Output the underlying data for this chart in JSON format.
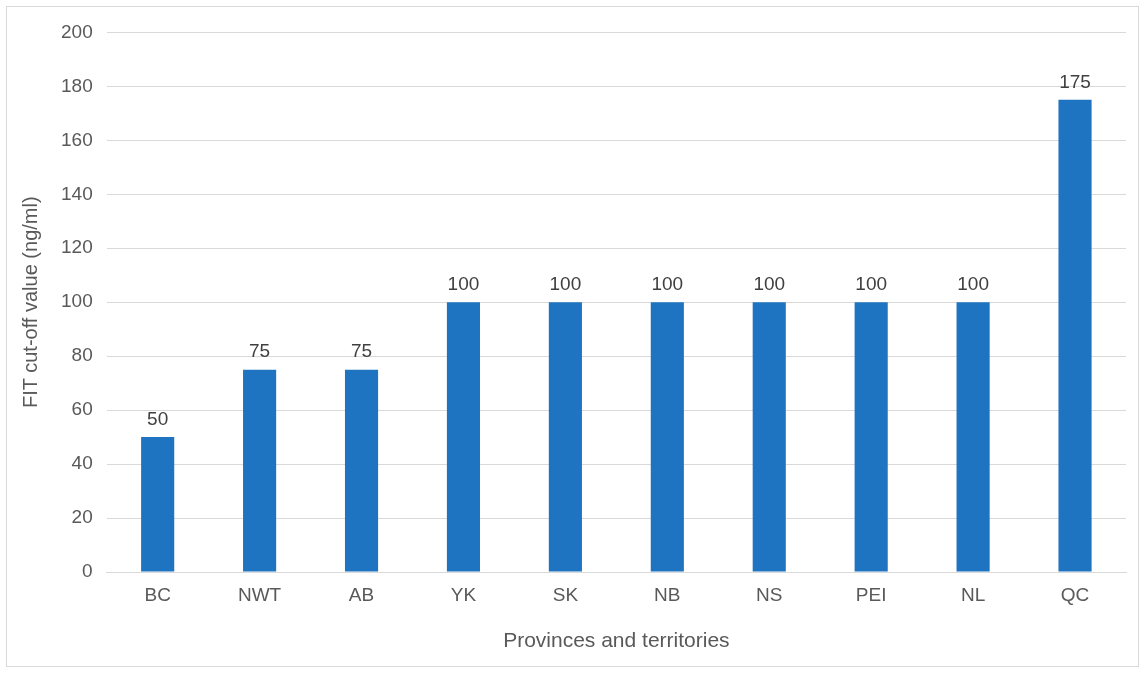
{
  "chart_data": {
    "type": "bar",
    "xlabel": "Provinces and territories",
    "ylabel": "FIT cut-off value (ng/ml)",
    "categories": [
      "BC",
      "NWT",
      "AB",
      "YK",
      "SK",
      "NB",
      "NS",
      "PEI",
      "NL",
      "QC"
    ],
    "values": [
      50,
      75,
      75,
      100,
      100,
      100,
      100,
      100,
      100,
      175
    ],
    "color": "#1f74c1",
    "ylim": [
      0,
      200
    ],
    "yticks": [
      0,
      20,
      40,
      60,
      80,
      100,
      120,
      140,
      160,
      180,
      200
    ],
    "grid": "y",
    "data_labels": true,
    "legend": false
  }
}
